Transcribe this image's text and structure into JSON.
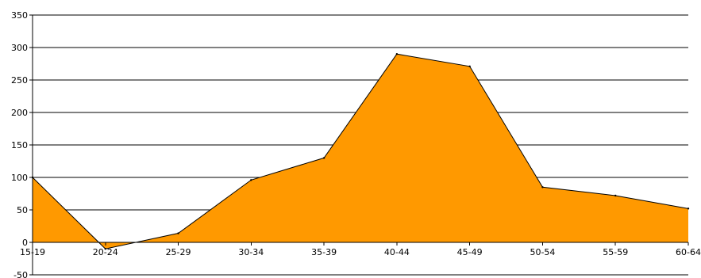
{
  "chart_data": {
    "type": "area",
    "title": "",
    "xlabel": "",
    "ylabel": "",
    "categories": [
      "15-19",
      "20-24",
      "25-29",
      "30-34",
      "35-39",
      "40-44",
      "45-49",
      "50-54",
      "55-59",
      "60-64"
    ],
    "series": [
      {
        "values": [
          100,
          -10,
          14,
          96,
          130,
          290,
          271,
          85,
          72,
          52
        ]
      }
    ],
    "ylim": [
      -50,
      350
    ],
    "yticks": [
      "-50",
      "0",
      "50",
      "100",
      "150",
      "200",
      "250",
      "300",
      "350"
    ],
    "grid": true,
    "legend": "none",
    "colors": {
      "fill": "#ff9900",
      "line": "#000000",
      "grid": "#000000"
    }
  }
}
